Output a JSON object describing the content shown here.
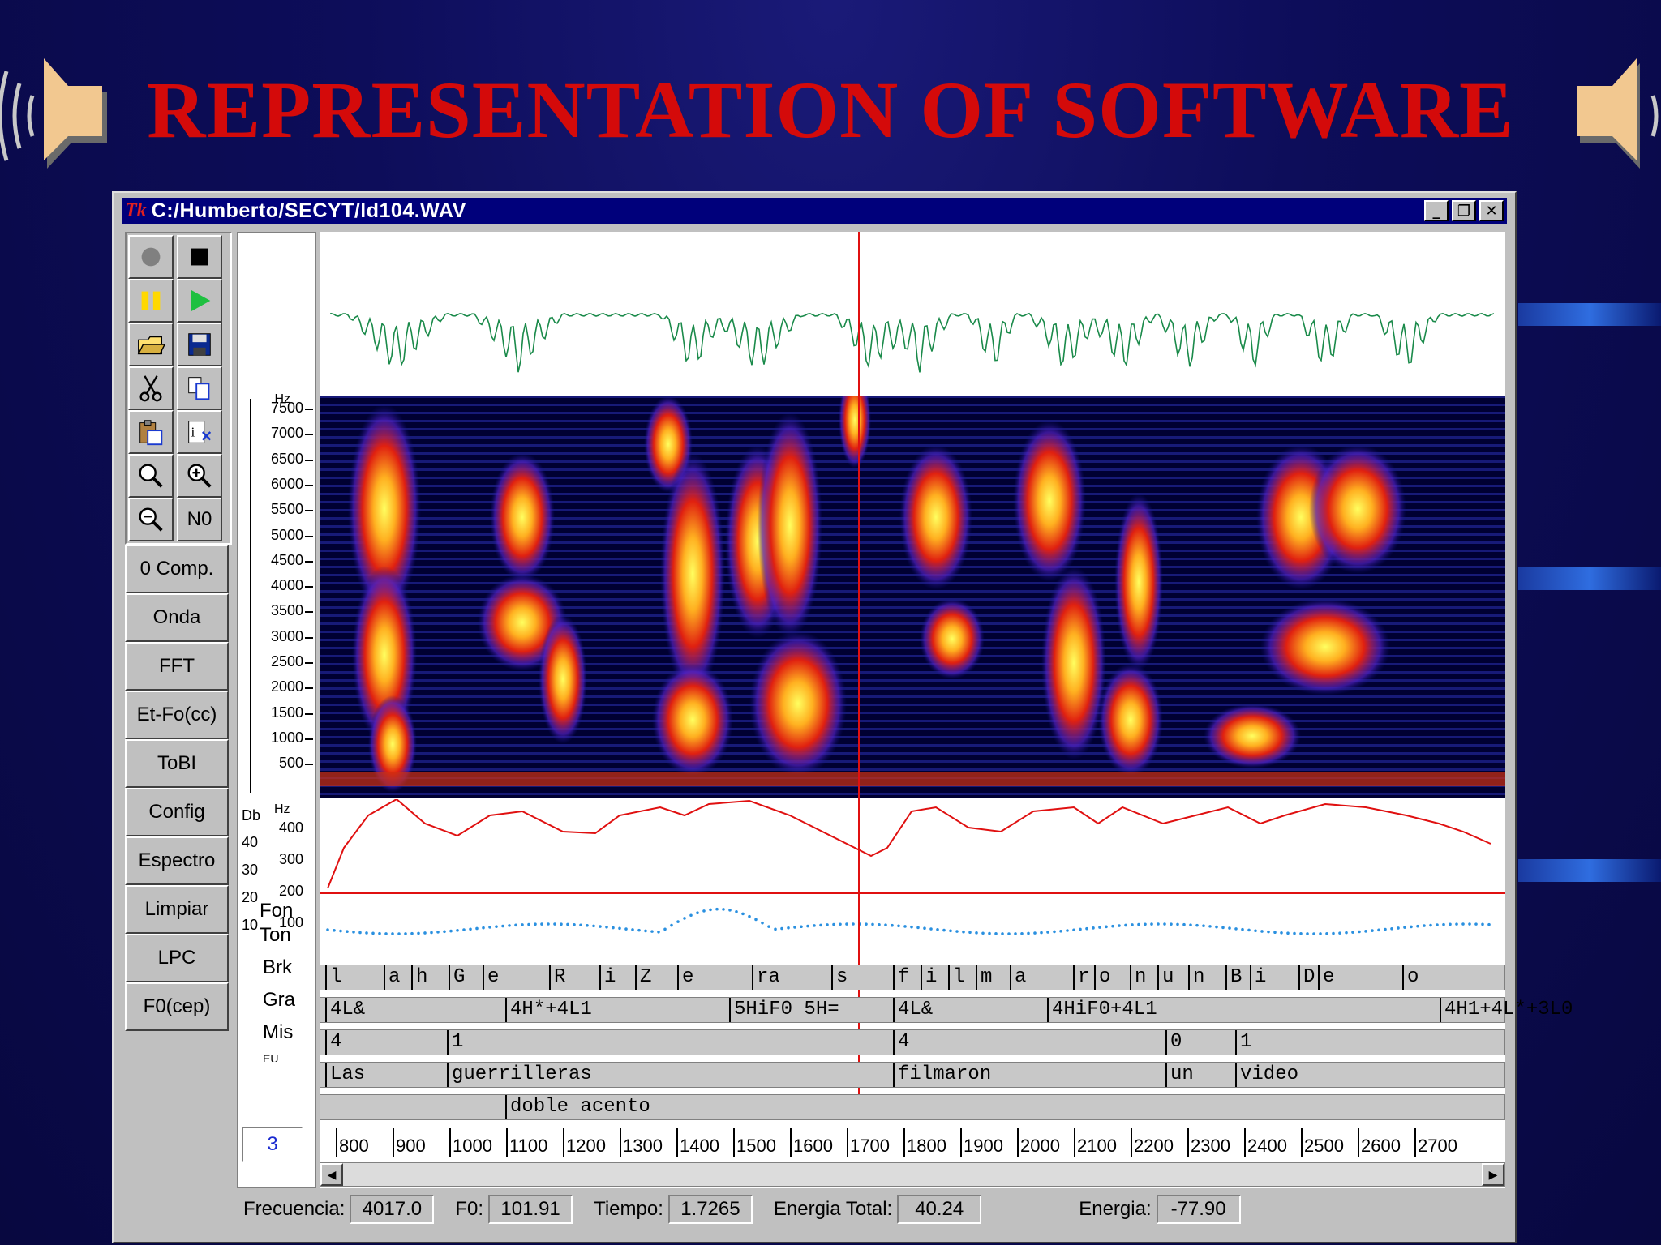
{
  "slide": {
    "title": "REPRESENTATION OF SOFTWARE"
  },
  "window": {
    "app_logo": "Tk",
    "title": "C:/Humberto/SECYT/ld104.WAV",
    "btn_minimize": "_",
    "btn_restore": "❐",
    "btn_close": "✕"
  },
  "toolbar": {
    "icons": [
      "record-icon",
      "stop-icon",
      "pause-icon",
      "play-icon",
      "open-folder-icon",
      "save-disk-icon",
      "cut-scissors-icon",
      "copy-icon",
      "paste-icon",
      "properties-icon",
      "zoom-icon",
      "zoom-in-icon",
      "zoom-out-icon"
    ],
    "no_label": "N0"
  },
  "sidebar": [
    "0 Comp.",
    "Onda",
    "FFT",
    "Et-Fo(cc)",
    "ToBI",
    "Config",
    "Espectro",
    "Limpiar",
    "LPC",
    "F0(cep)"
  ],
  "freq_axis": {
    "unit": "Hz",
    "ticks": [
      "7500",
      "7000",
      "6500",
      "6000",
      "5500",
      "5000",
      "4500",
      "4000",
      "3500",
      "3000",
      "2500",
      "2000",
      "1500",
      "1000",
      "500"
    ]
  },
  "pitch_axis": {
    "db_unit": "Db",
    "hz_unit": "Hz",
    "hz_ticks": [
      "400",
      "300",
      "200",
      "100"
    ],
    "db_ticks": [
      "40",
      "30",
      "20",
      "10"
    ]
  },
  "tier_labels": {
    "fon": "Fon",
    "ton": "Ton",
    "brk": "Brk",
    "gra": "Gra",
    "mis": "Mis",
    "extra": "EU"
  },
  "counter_value": "3",
  "tiers": {
    "fon": [
      "l",
      "a",
      "h",
      "G",
      "e",
      "R",
      "i",
      "Z",
      "e",
      "ra",
      "s",
      "f",
      "i",
      "l",
      "m",
      "a",
      "r",
      "o",
      "n",
      "u",
      "n",
      "B",
      "i",
      "D",
      "e",
      "o"
    ],
    "ton": [
      "4L&",
      "4H*+4L1",
      "5HiF0 5H=",
      "4L&",
      "4HiF0+4L1",
      "4H1+4L*+3L0"
    ],
    "brk": [
      "4",
      "1",
      "4",
      "0",
      "1"
    ],
    "gra": [
      "Las",
      "guerrilleras",
      "filmaron",
      "un",
      "video"
    ],
    "mis": [
      "doble acento"
    ]
  },
  "time_ruler": [
    "800",
    "900",
    "1000",
    "1100",
    "1200",
    "1300",
    "1400",
    "1500",
    "1600",
    "1700",
    "1800",
    "1900",
    "2000",
    "2100",
    "2200",
    "2300",
    "2400",
    "2500",
    "2600",
    "2700"
  ],
  "status": {
    "frecuencia_label": "Frecuencia:",
    "frecuencia_value": "4017.0",
    "f0_label": "F0:",
    "f0_value": "101.91",
    "tiempo_label": "Tiempo:",
    "tiempo_value": "1.7265",
    "energia_total_label": "Energia Total:",
    "energia_total_value": "40.24",
    "energia_label": "Energia:",
    "energia_value": "-77.90"
  },
  "colors": {
    "title_red": "#d40a0a",
    "waveform": "#1a8a4a",
    "pitch_line": "#e01010",
    "energy_points": "#2a90e0"
  }
}
